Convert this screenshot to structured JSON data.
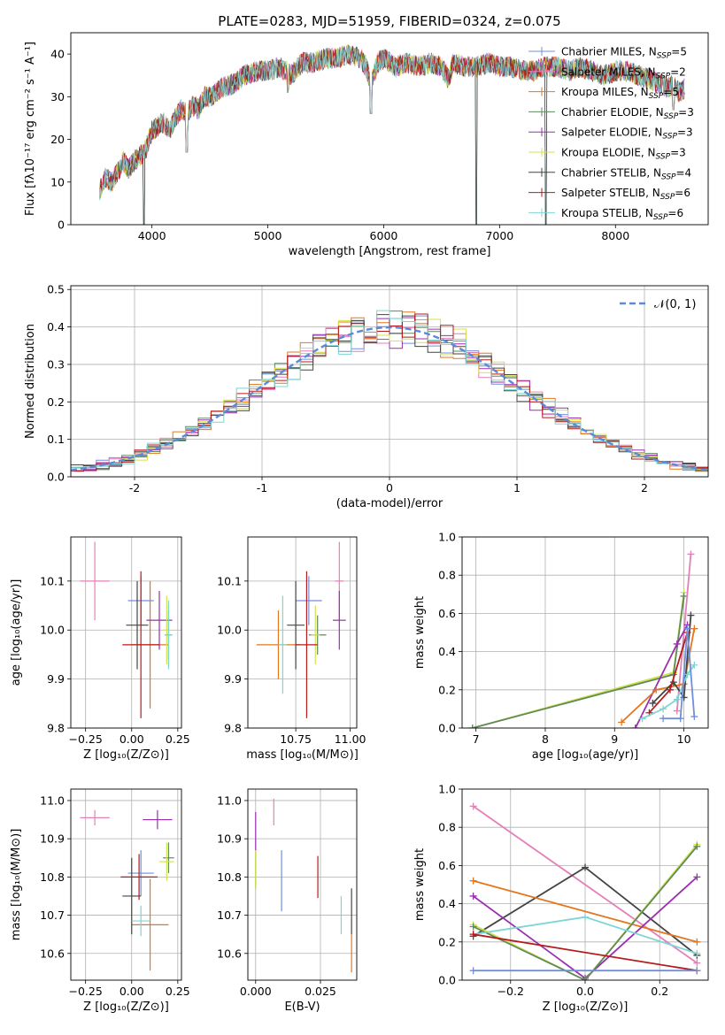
{
  "colors": {
    "Chabrier MILES": "#6f8fdc",
    "Salpeter MILES": "#e57fb8",
    "Kroupa MILES": "#e5761d",
    "Chabrier ELODIE": "#5e8a5e",
    "Salpeter ELODIE": "#9b2fb0",
    "Kroupa ELODIE": "#d4e24a",
    "Chabrier STELIB": "#444444",
    "Salpeter STELIB": "#b51b1b",
    "Kroupa STELIB": "#7fd4d4"
  },
  "chart_data": [
    {
      "type": "line",
      "title": "PLATE=0283, MJD=51959, FIBERID=0324, z=0.075",
      "xlabel": "wavelength [Angstrom, rest frame]",
      "ylabel": "Flux [fλ10⁻¹⁷ erg cm⁻² s⁻¹ A⁻¹]",
      "xlim": [
        3300,
        8800
      ],
      "ylim": [
        0,
        45
      ],
      "xticks": [
        4000,
        5000,
        6000,
        7000,
        8000
      ],
      "yticks": [
        0,
        10,
        20,
        30,
        40
      ],
      "grid": false,
      "legend_position": "top-right",
      "legend": [
        {
          "label": "Chabrier MILES, N",
          "sub": "SSP",
          "suffix": "=5"
        },
        {
          "label": "Salpeter MILES, N",
          "sub": "SSP",
          "suffix": "=2"
        },
        {
          "label": "Kroupa MILES, N",
          "sub": "SSP",
          "suffix": "=5"
        },
        {
          "label": "Chabrier ELODIE, N",
          "sub": "SSP",
          "suffix": "=3"
        },
        {
          "label": "Salpeter ELODIE, N",
          "sub": "SSP",
          "suffix": "=3"
        },
        {
          "label": "Kroupa ELODIE, N",
          "sub": "SSP",
          "suffix": "=3"
        },
        {
          "label": "Chabrier STELIB, N",
          "sub": "SSP",
          "suffix": "=4"
        },
        {
          "label": "Salpeter STELIB, N",
          "sub": "SSP",
          "suffix": "=6"
        },
        {
          "label": "Kroupa STELIB, N",
          "sub": "SSP",
          "suffix": "=6"
        }
      ],
      "spectrum_x": [
        3550,
        3600,
        3650,
        3700,
        3750,
        3800,
        3850,
        3900,
        3950,
        4000,
        4050,
        4100,
        4150,
        4200,
        4250,
        4300,
        4350,
        4400,
        4450,
        4500,
        4600,
        4700,
        4800,
        4900,
        5000,
        5100,
        5200,
        5300,
        5400,
        5500,
        5600,
        5700,
        5800,
        5850,
        5890,
        5950,
        6000,
        6100,
        6200,
        6300,
        6400,
        6500,
        6560,
        6600,
        6700,
        6800,
        6900,
        7000,
        7100,
        7200,
        7300,
        7400,
        7500,
        7600,
        7700,
        7800,
        7900,
        8000,
        8100,
        8200,
        8300,
        8400,
        8450,
        8500,
        8550,
        8600
      ],
      "spectrum_y": [
        8,
        11,
        10,
        12,
        15,
        13,
        15,
        16,
        18,
        22,
        23,
        24,
        22,
        25,
        27,
        26,
        28,
        27,
        30,
        30,
        32,
        33,
        35,
        36,
        36,
        37,
        35,
        38,
        38,
        39,
        39,
        40,
        39,
        37,
        33,
        38,
        39,
        37,
        38,
        37,
        38,
        37,
        34,
        38,
        37,
        37,
        38,
        37,
        37,
        36,
        36,
        37,
        37,
        36,
        37,
        36,
        35,
        36,
        36,
        35,
        34,
        33,
        32,
        33,
        31,
        32
      ],
      "dips": [
        {
          "x": 3930,
          "y": 0
        },
        {
          "x": 4300,
          "y": 17
        },
        {
          "x": 5175,
          "y": 31
        },
        {
          "x": 5890,
          "y": 26
        },
        {
          "x": 6800,
          "y": 0
        },
        {
          "x": 7400,
          "y": 0
        },
        {
          "x": 8500,
          "y": 27
        }
      ]
    },
    {
      "type": "histogram",
      "xlabel": "(data-model)/error",
      "ylabel": "Normed distribution",
      "xlim": [
        -2.5,
        2.5
      ],
      "ylim": [
        0,
        0.51
      ],
      "xticks": [
        -2,
        -1,
        0,
        1,
        2
      ],
      "yticks": [
        0.0,
        0.1,
        0.2,
        0.3,
        0.4,
        0.5
      ],
      "grid": true,
      "legend_position": "top-right",
      "gaussian_label": "𝒩(0, 1)",
      "bin_width": 0.1
    },
    {
      "type": "scatter",
      "xlabel": "Z [log₁₀(Z/Z⊙)]",
      "ylabel": "age  [log₁₀(age/yr)]",
      "xlim": [
        -0.33,
        0.27
      ],
      "ylim": [
        9.8,
        10.19
      ],
      "xticks": [
        -0.25,
        0.0,
        0.25
      ],
      "xtick_labels": [
        "−0.25",
        "0.00",
        "0.25"
      ],
      "yticks": [
        9.8,
        9.9,
        10.0,
        10.1
      ],
      "grid": true,
      "points": [
        {
          "m": "Chabrier MILES",
          "x": 0.05,
          "y": 10.06,
          "ex": 0.07,
          "ey": 0.05
        },
        {
          "m": "Salpeter MILES",
          "x": -0.2,
          "y": 10.1,
          "ex": 0.08,
          "ey": 0.08
        },
        {
          "m": "Kroupa MILES",
          "x": 0.1,
          "y": 9.97,
          "ex": 0.1,
          "ey": 0.13
        },
        {
          "m": "Chabrier ELODIE",
          "x": 0.2,
          "y": 9.99,
          "ex": 0.02,
          "ey": 0.05
        },
        {
          "m": "Salpeter ELODIE",
          "x": 0.15,
          "y": 10.02,
          "ex": 0.07,
          "ey": 0.06
        },
        {
          "m": "Kroupa ELODIE",
          "x": 0.19,
          "y": 10.0,
          "ex": 0.02,
          "ey": 0.07
        },
        {
          "m": "Chabrier STELIB",
          "x": 0.03,
          "y": 10.01,
          "ex": 0.06,
          "ey": 0.09
        },
        {
          "m": "Salpeter STELIB",
          "x": 0.05,
          "y": 9.97,
          "ex": 0.1,
          "ey": 0.15
        },
        {
          "m": "Kroupa STELIB",
          "x": 0.2,
          "y": 9.99,
          "ex": 0.02,
          "ey": 0.07
        }
      ]
    },
    {
      "type": "scatter",
      "xlabel": "mass [log₁₀(M/M⊙)]",
      "ylabel": "",
      "xlim": [
        10.53,
        11.03
      ],
      "ylim": [
        9.8,
        10.19
      ],
      "xticks": [
        10.75,
        11.0
      ],
      "xtick_labels": [
        "10.75",
        "11.00"
      ],
      "yticks": [
        9.8,
        9.9,
        10.0,
        10.1
      ],
      "grid": true,
      "points": [
        {
          "m": "Chabrier MILES",
          "x": 10.81,
          "y": 10.06,
          "ex": 0.06,
          "ey": 0.05
        },
        {
          "m": "Salpeter MILES",
          "x": 10.95,
          "y": 10.1,
          "ex": 0.02,
          "ey": 0.08
        },
        {
          "m": "Kroupa MILES",
          "x": 10.67,
          "y": 9.97,
          "ex": 0.1,
          "ey": 0.07
        },
        {
          "m": "Chabrier ELODIE",
          "x": 10.85,
          "y": 9.99,
          "ex": 0.04,
          "ey": 0.04
        },
        {
          "m": "Salpeter ELODIE",
          "x": 10.95,
          "y": 10.02,
          "ex": 0.03,
          "ey": 0.06
        },
        {
          "m": "Kroupa ELODIE",
          "x": 10.84,
          "y": 9.99,
          "ex": 0.02,
          "ey": 0.06
        },
        {
          "m": "Chabrier STELIB",
          "x": 10.75,
          "y": 10.01,
          "ex": 0.04,
          "ey": 0.09
        },
        {
          "m": "Salpeter STELIB",
          "x": 10.8,
          "y": 9.97,
          "ex": 0.05,
          "ey": 0.15
        },
        {
          "m": "Kroupa STELIB",
          "x": 10.69,
          "y": 9.97,
          "ex": 0.02,
          "ey": 0.1
        }
      ]
    },
    {
      "type": "line",
      "xlabel": "age  [log₁₀(age/yr)]",
      "ylabel": "mass weight",
      "xlim": [
        6.8,
        10.35
      ],
      "ylim": [
        0,
        1.0
      ],
      "xticks": [
        7,
        8,
        9,
        10
      ],
      "yticks": [
        0.0,
        0.2,
        0.4,
        0.6,
        0.8,
        1.0
      ],
      "grid": true,
      "series": [
        {
          "m": "Kroupa ELODIE",
          "x": [
            6.95,
            9.85,
            10.0
          ],
          "y": [
            0.0,
            0.29,
            0.71
          ]
        },
        {
          "m": "Chabrier ELODIE",
          "x": [
            6.95,
            9.85,
            10.0
          ],
          "y": [
            0.0,
            0.28,
            0.69
          ]
        },
        {
          "m": "Salpeter MILES",
          "x": [
            9.9,
            10.1
          ],
          "y": [
            0.09,
            0.91
          ]
        },
        {
          "m": "Salpeter ELODIE",
          "x": [
            9.3,
            9.9,
            10.05
          ],
          "y": [
            0.0,
            0.44,
            0.54
          ]
        },
        {
          "m": "Kroupa MILES",
          "x": [
            9.1,
            9.6,
            10.0,
            10.15
          ],
          "y": [
            0.03,
            0.2,
            0.23,
            0.52
          ]
        },
        {
          "m": "Chabrier STELIB",
          "x": [
            9.55,
            9.85,
            10.0,
            10.1
          ],
          "y": [
            0.13,
            0.24,
            0.16,
            0.59
          ]
        },
        {
          "m": "Salpeter STELIB",
          "x": [
            9.5,
            9.8,
            10.05
          ],
          "y": [
            0.08,
            0.2,
            0.5
          ]
        },
        {
          "m": "Kroupa STELIB",
          "x": [
            9.4,
            9.7,
            9.9,
            10.05,
            10.15
          ],
          "y": [
            0.05,
            0.1,
            0.15,
            0.28,
            0.33
          ]
        },
        {
          "m": "Chabrier MILES",
          "x": [
            9.7,
            9.95,
            10.05,
            10.15
          ],
          "y": [
            0.05,
            0.05,
            0.52,
            0.06
          ]
        }
      ]
    },
    {
      "type": "scatter",
      "xlabel": "Z [log₁₀(Z/Z⊙)]",
      "ylabel": "mass [log₁₀(M/M⊙)]",
      "xlim": [
        -0.33,
        0.27
      ],
      "ylim": [
        10.53,
        11.03
      ],
      "xticks": [
        -0.25,
        0.0,
        0.25
      ],
      "xtick_labels": [
        "−0.25",
        "0.00",
        "0.25"
      ],
      "yticks": [
        10.6,
        10.7,
        10.8,
        10.9,
        11.0
      ],
      "grid": true,
      "points": [
        {
          "m": "Chabrier MILES",
          "x": 0.05,
          "y": 10.81,
          "ex": 0.07,
          "ey": 0.06
        },
        {
          "m": "Salpeter MILES",
          "x": -0.2,
          "y": 10.955,
          "ex": 0.08,
          "ey": 0.02
        },
        {
          "m": "Kroupa MILES",
          "x": 0.1,
          "y": 10.675,
          "ex": 0.1,
          "ey": 0.12
        },
        {
          "m": "Chabrier ELODIE",
          "x": 0.2,
          "y": 10.85,
          "ex": 0.03,
          "ey": 0.04
        },
        {
          "m": "Salpeter ELODIE",
          "x": 0.14,
          "y": 10.95,
          "ex": 0.08,
          "ey": 0.025
        },
        {
          "m": "Kroupa ELODIE",
          "x": 0.19,
          "y": 10.84,
          "ex": 0.04,
          "ey": 0.05
        },
        {
          "m": "Chabrier STELIB",
          "x": 0.0,
          "y": 10.75,
          "ex": 0.05,
          "ey": 0.1
        },
        {
          "m": "Salpeter STELIB",
          "x": 0.04,
          "y": 10.8,
          "ex": 0.1,
          "ey": 0.06
        },
        {
          "m": "Kroupa STELIB",
          "x": 0.05,
          "y": 10.685,
          "ex": 0.05,
          "ey": 0.04
        }
      ]
    },
    {
      "type": "scatter",
      "xlabel": "E(B-V)",
      "ylabel": "",
      "xlim": [
        -0.003,
        0.039
      ],
      "ylim": [
        10.53,
        11.03
      ],
      "xticks": [
        0.0,
        0.025
      ],
      "xtick_labels": [
        "0.000",
        "0.025"
      ],
      "yticks": [
        10.6,
        10.7,
        10.8,
        10.9,
        11.0
      ],
      "grid": true,
      "points": [
        {
          "m": "Chabrier MILES",
          "x": 0.01,
          "y": 10.79,
          "ex": 0,
          "ey": 0.08
        },
        {
          "m": "Salpeter MILES",
          "x": 0.007,
          "y": 10.97,
          "ex": 0,
          "ey": 0.035
        },
        {
          "m": "Kroupa MILES",
          "x": 0.037,
          "y": 10.6,
          "ex": 0,
          "ey": 0.05
        },
        {
          "m": "Chabrier ELODIE",
          "x": 0.0,
          "y": 10.82,
          "ex": 0,
          "ey": 0.05
        },
        {
          "m": "Salpeter ELODIE",
          "x": 0.0,
          "y": 10.92,
          "ex": 0,
          "ey": 0.05
        },
        {
          "m": "Kroupa ELODIE",
          "x": 0.0,
          "y": 10.82,
          "ex": 0,
          "ey": 0.05
        },
        {
          "m": "Chabrier STELIB",
          "x": 0.037,
          "y": 10.71,
          "ex": 0,
          "ey": 0.06
        },
        {
          "m": "Salpeter STELIB",
          "x": 0.024,
          "y": 10.8,
          "ex": 0,
          "ey": 0.055
        },
        {
          "m": "Kroupa STELIB",
          "x": 0.033,
          "y": 10.7,
          "ex": 0,
          "ey": 0.05
        }
      ]
    },
    {
      "type": "line",
      "xlabel": "Z [log₁₀(Z/Z⊙)]",
      "ylabel": "mass weight",
      "xlim": [
        -0.33,
        0.33
      ],
      "ylim": [
        0,
        1.0
      ],
      "xticks": [
        -0.2,
        0.0,
        0.2
      ],
      "xtick_labels": [
        "−0.2",
        "0.0",
        "0.2"
      ],
      "yticks": [
        0.0,
        0.2,
        0.4,
        0.6,
        0.8,
        1.0
      ],
      "grid": true,
      "series": [
        {
          "m": "Salpeter MILES",
          "x": [
            -0.3,
            0.3
          ],
          "y": [
            0.91,
            0.09
          ]
        },
        {
          "m": "Chabrier STELIB",
          "x": [
            -0.3,
            0.0,
            0.3
          ],
          "y": [
            0.23,
            0.59,
            0.13
          ]
        },
        {
          "m": "Kroupa MILES",
          "x": [
            -0.3,
            0.3
          ],
          "y": [
            0.52,
            0.2
          ]
        },
        {
          "m": "Salpeter ELODIE",
          "x": [
            -0.3,
            0.0,
            0.3
          ],
          "y": [
            0.44,
            0.01,
            0.54
          ]
        },
        {
          "m": "Kroupa ELODIE",
          "x": [
            -0.3,
            0.0,
            0.3
          ],
          "y": [
            0.29,
            0.0,
            0.71
          ]
        },
        {
          "m": "Chabrier ELODIE",
          "x": [
            -0.3,
            0.0,
            0.3
          ],
          "y": [
            0.28,
            0.0,
            0.7
          ]
        },
        {
          "m": "Kroupa STELIB",
          "x": [
            -0.3,
            0.0,
            0.3
          ],
          "y": [
            0.24,
            0.33,
            0.14
          ]
        },
        {
          "m": "Salpeter STELIB",
          "x": [
            -0.3,
            0.3
          ],
          "y": [
            0.24,
            0.05
          ]
        },
        {
          "m": "Chabrier MILES",
          "x": [
            -0.3,
            0.3
          ],
          "y": [
            0.05,
            0.05
          ]
        }
      ]
    }
  ]
}
